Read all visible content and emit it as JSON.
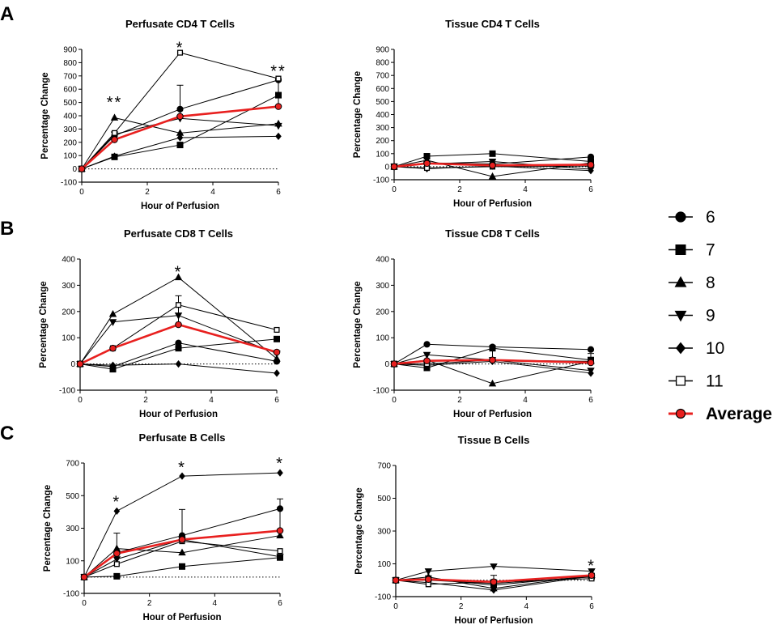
{
  "figure": {
    "panel_letters": [
      "A",
      "B",
      "C"
    ],
    "legend": [
      {
        "label": "6",
        "marker": "circle-icon"
      },
      {
        "label": "7",
        "marker": "square-icon"
      },
      {
        "label": "8",
        "marker": "triangle-up-icon"
      },
      {
        "label": "9",
        "marker": "triangle-down-icon"
      },
      {
        "label": "10",
        "marker": "diamond-icon"
      },
      {
        "label": "11",
        "marker": "open-square-icon"
      },
      {
        "label": "Average",
        "marker": "red-circle-icon"
      }
    ],
    "colors": {
      "series": "#000000",
      "average": "#e8201f",
      "average_fill": "#e8201f"
    }
  },
  "chart_data": [
    {
      "type": "line",
      "title": "Perfusate CD4 T Cells",
      "xlabel": "Hour of Perfusion",
      "ylabel": "Percentage Change",
      "xlim": [
        0,
        6
      ],
      "ylim": [
        -100,
        900
      ],
      "xticks": [
        0,
        2,
        4,
        6
      ],
      "yticks": [
        -100,
        0,
        100,
        200,
        300,
        400,
        500,
        600,
        700,
        800,
        900
      ],
      "x": [
        0,
        1,
        3,
        6
      ],
      "series": [
        {
          "name": "6",
          "values": [
            0,
            250,
            450,
            670
          ]
        },
        {
          "name": "7",
          "values": [
            0,
            90,
            180,
            555
          ]
        },
        {
          "name": "8",
          "values": [
            0,
            385,
            270,
            340
          ]
        },
        {
          "name": "9",
          "values": [
            0,
            260,
            380,
            325
          ]
        },
        {
          "name": "10",
          "values": [
            0,
            95,
            235,
            245
          ]
        },
        {
          "name": "11",
          "values": [
            0,
            270,
            875,
            680
          ]
        },
        {
          "name": "Average",
          "values": [
            0,
            220,
            395,
            470
          ]
        }
      ],
      "error_up": [
        0,
        85,
        630,
        680
      ],
      "annotations": [
        {
          "x": 1,
          "text": "**",
          "y": 510
        },
        {
          "x": 3,
          "text": "*",
          "y": 920
        },
        {
          "x": 6,
          "text": "**",
          "y": 745
        }
      ]
    },
    {
      "type": "line",
      "title": "Tissue CD4 T Cells",
      "xlabel": "Hour of Perfusion",
      "ylabel": "Percentage  Change",
      "xlim": [
        0,
        6
      ],
      "ylim": [
        -100,
        900
      ],
      "xticks": [
        0,
        2,
        4,
        6
      ],
      "yticks": [
        -100,
        0,
        100,
        200,
        300,
        400,
        500,
        600,
        700,
        800,
        900
      ],
      "x": [
        0,
        1,
        3,
        6
      ],
      "series": [
        {
          "name": "6",
          "values": [
            0,
            30,
            20,
            75
          ]
        },
        {
          "name": "7",
          "values": [
            0,
            80,
            100,
            40
          ]
        },
        {
          "name": "8",
          "values": [
            0,
            50,
            -75,
            30
          ]
        },
        {
          "name": "9",
          "values": [
            0,
            20,
            40,
            -20
          ]
        },
        {
          "name": "10",
          "values": [
            0,
            -15,
            5,
            -30
          ]
        },
        {
          "name": "11",
          "values": [
            0,
            -10,
            0,
            5
          ]
        },
        {
          "name": "Average",
          "values": [
            0,
            25,
            10,
            15
          ]
        }
      ],
      "error_up": [
        0,
        60,
        50,
        60
      ],
      "annotations": []
    },
    {
      "type": "line",
      "title": "Perfusate CD8 T Cells",
      "xlabel": "Hour of Perfusion",
      "ylabel": "Percentage Change",
      "xlim": [
        0,
        6
      ],
      "ylim": [
        -100,
        400
      ],
      "xticks": [
        0,
        2,
        4,
        6
      ],
      "yticks": [
        -100,
        0,
        100,
        200,
        300,
        400
      ],
      "x": [
        0,
        1,
        3,
        6
      ],
      "series": [
        {
          "name": "6",
          "values": [
            0,
            -10,
            80,
            10
          ]
        },
        {
          "name": "7",
          "values": [
            0,
            -20,
            60,
            95
          ]
        },
        {
          "name": "8",
          "values": [
            0,
            190,
            330,
            20
          ]
        },
        {
          "name": "9",
          "values": [
            0,
            160,
            185,
            40
          ]
        },
        {
          "name": "10",
          "values": [
            0,
            -5,
            0,
            -35
          ]
        },
        {
          "name": "11",
          "values": [
            0,
            60,
            225,
            130
          ]
        },
        {
          "name": "Average",
          "values": [
            0,
            60,
            150,
            45
          ]
        }
      ],
      "error_up": [
        0,
        0,
        260,
        0
      ],
      "annotations": [
        {
          "x": 3,
          "text": "*",
          "y": 355
        }
      ]
    },
    {
      "type": "line",
      "title": "Tissue CD8 T Cells",
      "xlabel": "Hour of Perfusion",
      "ylabel": "Percentage  Change",
      "xlim": [
        0,
        6
      ],
      "ylim": [
        -100,
        400
      ],
      "xticks": [
        0,
        2,
        4,
        6
      ],
      "yticks": [
        -100,
        0,
        100,
        200,
        300,
        400
      ],
      "x": [
        0,
        1,
        3,
        6
      ],
      "series": [
        {
          "name": "6",
          "values": [
            0,
            75,
            65,
            55
          ]
        },
        {
          "name": "7",
          "values": [
            0,
            -15,
            60,
            15
          ]
        },
        {
          "name": "8",
          "values": [
            0,
            15,
            -75,
            10
          ]
        },
        {
          "name": "9",
          "values": [
            0,
            35,
            15,
            -25
          ]
        },
        {
          "name": "10",
          "values": [
            0,
            -5,
            10,
            -35
          ]
        },
        {
          "name": "11",
          "values": [
            0,
            0,
            15,
            10
          ]
        },
        {
          "name": "Average",
          "values": [
            0,
            12,
            15,
            5
          ]
        }
      ],
      "error_up": [
        0,
        0,
        55,
        40
      ],
      "annotations": []
    },
    {
      "type": "line",
      "title": "Perfusate B Cells",
      "xlabel": "Hour of Perfusion",
      "ylabel": "Percentage Change",
      "xlim": [
        0,
        6
      ],
      "ylim": [
        -100,
        700
      ],
      "xticks": [
        0,
        2,
        4,
        6
      ],
      "yticks": [
        -100,
        100,
        300,
        500,
        700
      ],
      "x": [
        0,
        1,
        3,
        6
      ],
      "series": [
        {
          "name": "6",
          "values": [
            0,
            150,
            255,
            420
          ]
        },
        {
          "name": "7",
          "values": [
            0,
            5,
            65,
            120
          ]
        },
        {
          "name": "8",
          "values": [
            0,
            175,
            150,
            255
          ]
        },
        {
          "name": "9",
          "values": [
            0,
            110,
            230,
            125
          ]
        },
        {
          "name": "10",
          "values": [
            0,
            405,
            620,
            640
          ]
        },
        {
          "name": "11",
          "values": [
            0,
            80,
            220,
            160
          ]
        },
        {
          "name": "Average",
          "values": [
            0,
            145,
            230,
            285
          ]
        }
      ],
      "error_up": [
        0,
        270,
        415,
        480
      ],
      "annotations": [
        {
          "x": 1,
          "text": "*",
          "y": 470
        },
        {
          "x": 3,
          "text": "*",
          "y": 680
        },
        {
          "x": 6,
          "text": "*",
          "y": 705
        }
      ]
    },
    {
      "type": "line",
      "title": "Tissue B Cells",
      "xlabel": "Hour of Perfusion",
      "ylabel": "Percentage Change",
      "xlim": [
        0,
        6
      ],
      "ylim": [
        -100,
        700
      ],
      "xticks": [
        0,
        2,
        4,
        6
      ],
      "yticks": [
        -100,
        100,
        300,
        500,
        700
      ],
      "x": [
        0,
        1,
        3,
        6
      ],
      "series": [
        {
          "name": "6",
          "values": [
            0,
            0,
            -20,
            20
          ]
        },
        {
          "name": "7",
          "values": [
            0,
            10,
            -30,
            25
          ]
        },
        {
          "name": "8",
          "values": [
            0,
            20,
            -50,
            30
          ]
        },
        {
          "name": "9",
          "values": [
            0,
            55,
            85,
            55
          ]
        },
        {
          "name": "10",
          "values": [
            0,
            -15,
            -60,
            25
          ]
        },
        {
          "name": "11",
          "values": [
            0,
            -25,
            -10,
            10
          ]
        },
        {
          "name": "Average",
          "values": [
            0,
            5,
            -10,
            30
          ]
        }
      ],
      "error_up": [
        0,
        0,
        30,
        0
      ],
      "annotations": [
        {
          "x": 6,
          "text": "*",
          "y": 95
        }
      ]
    }
  ]
}
